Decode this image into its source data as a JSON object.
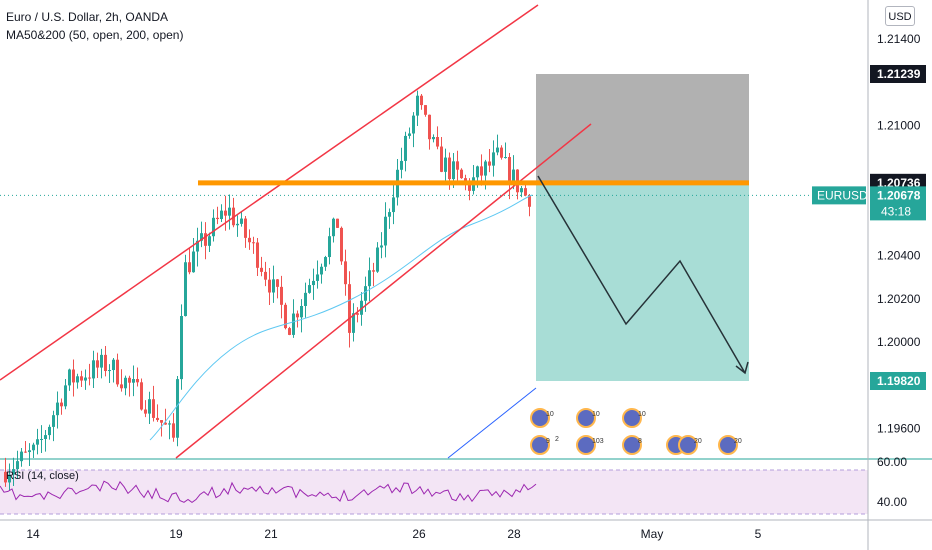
{
  "header": {
    "title": "Euro / U.S. Dollar, 2h, OANDA",
    "indicator": "MA50&200 (50, open, 200, open)",
    "currency_button": "USD"
  },
  "colors": {
    "candle_up": "#26a69a",
    "candle_down": "#ef5350",
    "channel": "#f23645",
    "resistance": "#ff9800",
    "ma50": "#5ec8f2",
    "ma200": "#2962ff",
    "rsi": "#9c27b0",
    "stop_zone": "#a3a3a3",
    "target_zone": "#9fd9d2",
    "projection": "#263238"
  },
  "chart_data": {
    "type": "candlestick",
    "symbol": "EURUSD",
    "timeframe": "2h",
    "x_ticks": [
      "14",
      "19",
      "21",
      "26",
      "28",
      "May",
      "5"
    ],
    "y_ticks": [
      "1.21400",
      "1.21000",
      "1.20400",
      "1.20200",
      "1.20000",
      "1.19600"
    ],
    "ylim": [
      1.1936,
      1.2161
    ],
    "price_labels": {
      "target_top": "1.21239",
      "resistance": "1.20736",
      "current": "1.20678",
      "countdown": "43:18",
      "target_bottom": "1.19820",
      "symbol_tag": "EURUSD"
    },
    "rsi": {
      "label": "RSI (14, close)",
      "levels": [
        "60.00",
        "40.00"
      ]
    },
    "event_markers": [
      "10",
      "10",
      "10",
      "9",
      "2",
      "103",
      "8",
      "20",
      "20",
      "20"
    ]
  }
}
